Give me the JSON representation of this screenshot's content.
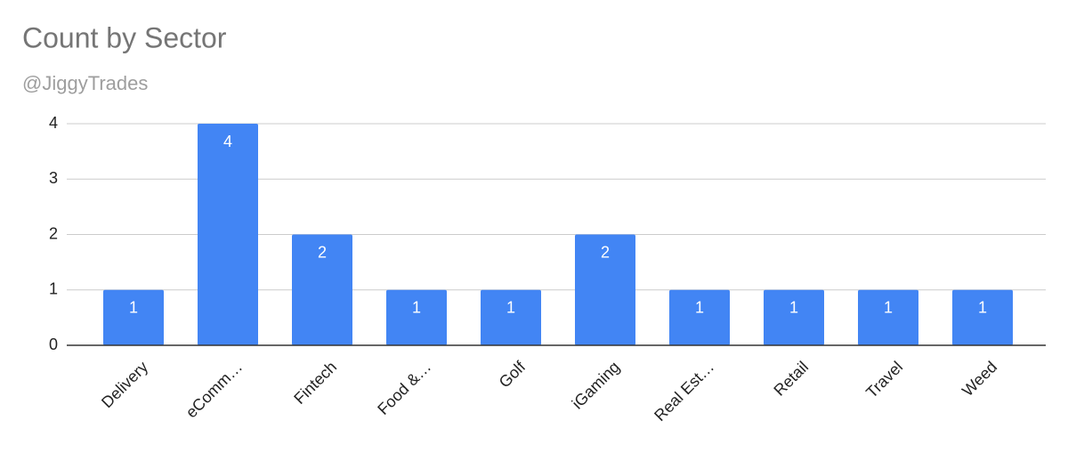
{
  "chart_data": {
    "type": "bar",
    "title": "Count by Sector",
    "subtitle": "@JiggyTrades",
    "categories": [
      "Delivery",
      "eComm…",
      "Fintech",
      "Food &…",
      "Golf",
      "iGaming",
      "Real Est…",
      "Retail",
      "Travel",
      "Weed"
    ],
    "values": [
      1,
      4,
      2,
      1,
      1,
      2,
      1,
      1,
      1,
      1
    ],
    "color": "#4285f4",
    "ylim": [
      0,
      4
    ],
    "yticks": [
      0,
      1,
      2,
      3,
      4
    ],
    "grid": true,
    "data_labels": true
  }
}
